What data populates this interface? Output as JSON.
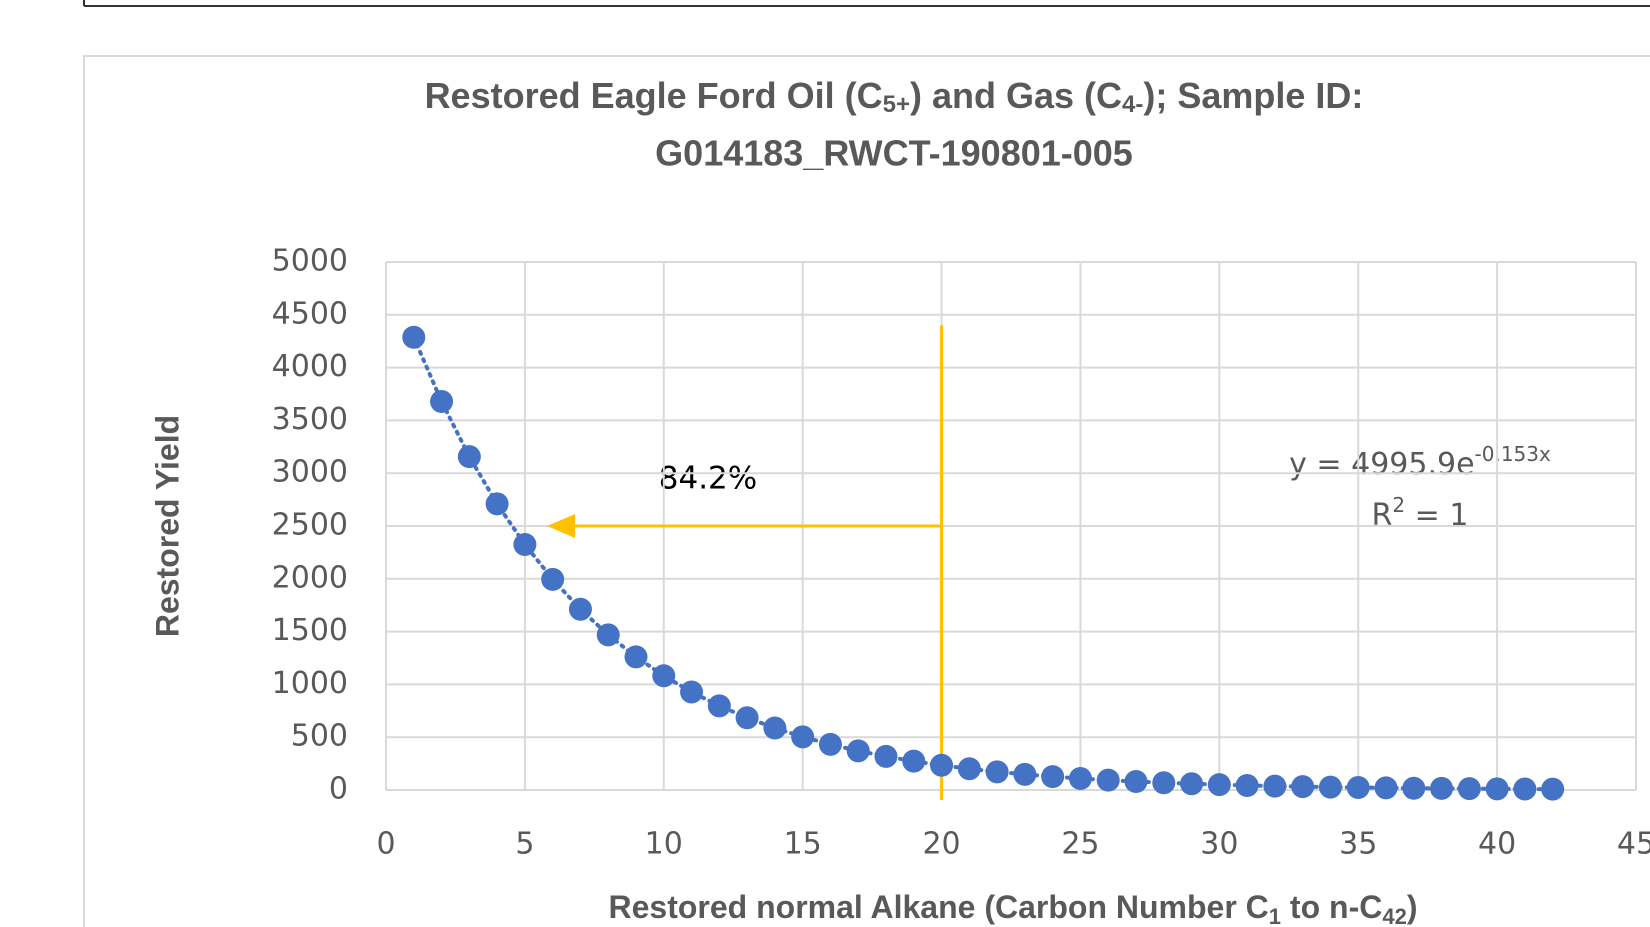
{
  "chart_data": {
    "type": "scatter",
    "title": [
      "Restored Eagle Ford Oil (C",
      "5+",
      ") and Gas (C",
      "4-",
      "); Sample ID:",
      "G014183_RWCT-190801-005"
    ],
    "x_label": [
      "Restored normal Alkane (Carbon Number C",
      "1",
      " to n-C",
      "42",
      ")"
    ],
    "y_label": "Restored Yield",
    "annotation": "84.2%",
    "equation": [
      "y = 4995.9e",
      "-0.153x",
      "R",
      "2",
      " = 1"
    ],
    "x": [
      1,
      2,
      3,
      4,
      5,
      6,
      7,
      8,
      9,
      10,
      11,
      12,
      13,
      14,
      15,
      16,
      17,
      18,
      19,
      20,
      21,
      22,
      23,
      24,
      25,
      26,
      27,
      28,
      29,
      30,
      31,
      32,
      33,
      34,
      35,
      36,
      37,
      38,
      39,
      40,
      41,
      42
    ],
    "series": [
      {
        "name": "Restored Yield",
        "color": "#4472c4",
        "values": [
          4287,
          3679,
          3157,
          2709,
          2325,
          1995,
          1712,
          1469,
          1261,
          1082,
          928,
          797,
          684,
          587,
          503,
          432,
          371,
          318,
          273,
          234,
          201,
          172,
          148,
          127,
          109,
          93,
          80,
          69,
          59,
          51,
          43,
          37,
          32,
          27,
          24,
          20,
          17,
          15,
          13,
          11,
          9,
          8
        ]
      }
    ],
    "trendline": true,
    "reference_line": {
      "x": 20,
      "y_top": 4400,
      "color": "#ffc000"
    },
    "arrow": {
      "y": 2500,
      "x_from": 20,
      "x_to": 5.8,
      "color": "#ffc000"
    },
    "xlim": [
      0,
      45
    ],
    "xticks": [
      0,
      5,
      10,
      15,
      20,
      25,
      30,
      35,
      40,
      45
    ],
    "ylim": [
      0,
      5000
    ],
    "yticks": [
      0,
      500,
      1000,
      1500,
      2000,
      2500,
      3000,
      3500,
      4000,
      4500,
      5000
    ],
    "grid": true
  }
}
